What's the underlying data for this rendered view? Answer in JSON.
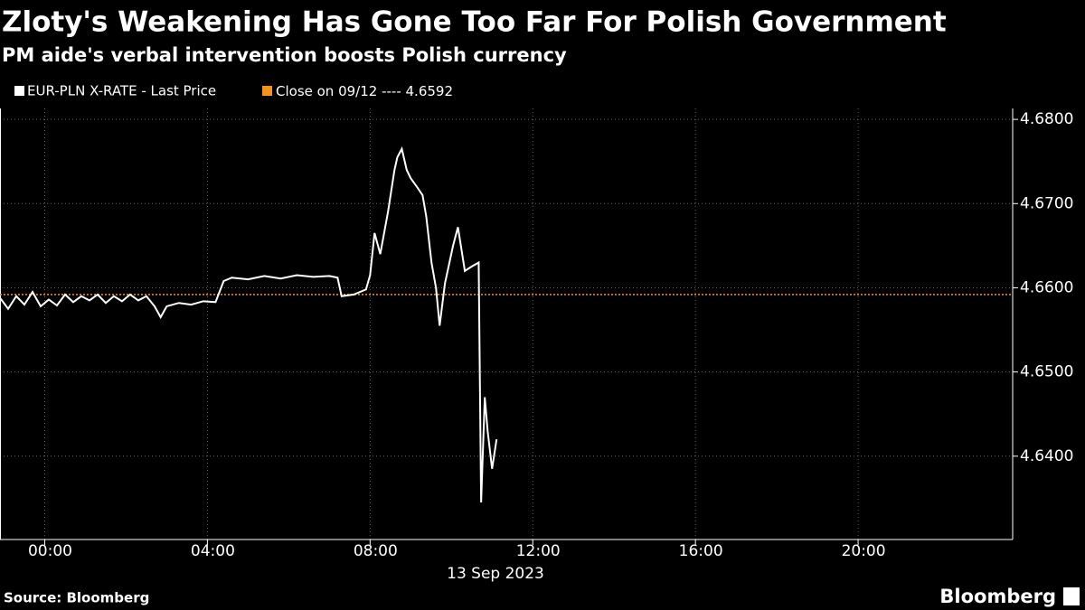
{
  "chart_data": {
    "type": "line",
    "title": "Zloty's Weakening Has Gone Too Far For Polish Government",
    "subtitle": "PM aide's verbal intervention boosts Polish currency",
    "x_label": "13 Sep 2023",
    "source": "Source: Bloomberg",
    "brand": "Bloomberg",
    "x": [
      -1.1,
      -0.9,
      -0.7,
      -0.5,
      -0.3,
      -0.1,
      0.1,
      0.3,
      0.5,
      0.7,
      0.9,
      1.1,
      1.3,
      1.5,
      1.7,
      1.9,
      2.1,
      2.3,
      2.5,
      2.7,
      2.85,
      3.0,
      3.3,
      3.6,
      3.9,
      4.2,
      4.4,
      4.6,
      5.0,
      5.4,
      5.8,
      6.2,
      6.6,
      7.0,
      7.2,
      7.3,
      7.6,
      7.9,
      8.0,
      8.11,
      8.25,
      8.44,
      8.6,
      8.67,
      8.78,
      8.9,
      9.0,
      9.15,
      9.29,
      9.38,
      9.51,
      9.62,
      9.71,
      9.84,
      10.04,
      10.16,
      10.33,
      10.49,
      10.67,
      10.73,
      10.82,
      10.89,
      11.0,
      11.11
    ],
    "series": [
      {
        "name": "EUR-PLN X-RATE - Last Price",
        "color": "#ffffff",
        "values": [
          4.6588,
          4.6575,
          4.659,
          4.658,
          4.6595,
          4.6578,
          4.6586,
          4.6579,
          4.6592,
          4.6583,
          4.659,
          4.6585,
          4.6592,
          4.6582,
          4.659,
          4.6584,
          4.6592,
          4.6585,
          4.659,
          4.6578,
          4.6565,
          4.6578,
          4.6582,
          4.658,
          4.6584,
          4.6583,
          4.6608,
          4.6612,
          4.661,
          4.6614,
          4.6611,
          4.6615,
          4.6613,
          4.6614,
          4.6612,
          4.659,
          4.6592,
          4.6598,
          4.6615,
          4.6665,
          4.664,
          4.669,
          4.674,
          4.6755,
          4.6765,
          4.674,
          4.673,
          4.672,
          4.671,
          4.6685,
          4.663,
          4.66,
          4.6555,
          4.6605,
          4.665,
          4.6672,
          4.662,
          4.6625,
          4.663,
          4.6345,
          4.647,
          4.643,
          4.6385,
          4.642
        ]
      }
    ],
    "reference": {
      "name": "Close on 09/12 ----",
      "value": 4.6592,
      "color": "#f7931a"
    },
    "xlim": [
      -1.1,
      23.8
    ],
    "xticks": [
      {
        "value": 0,
        "label": "00:00"
      },
      {
        "value": 4,
        "label": "04:00"
      },
      {
        "value": 8,
        "label": "08:00"
      },
      {
        "value": 12,
        "label": "12:00"
      },
      {
        "value": 16,
        "label": "16:00"
      },
      {
        "value": 20,
        "label": "20:00"
      }
    ],
    "ylim": [
      4.6301,
      4.6813
    ],
    "yticks": [
      {
        "value": 4.64,
        "label": "4.6400"
      },
      {
        "value": 4.65,
        "label": "4.6500"
      },
      {
        "value": 4.66,
        "label": "4.6600"
      },
      {
        "value": 4.67,
        "label": "4.6700"
      },
      {
        "value": 4.68,
        "label": "4.6800"
      }
    ],
    "grid": true
  }
}
